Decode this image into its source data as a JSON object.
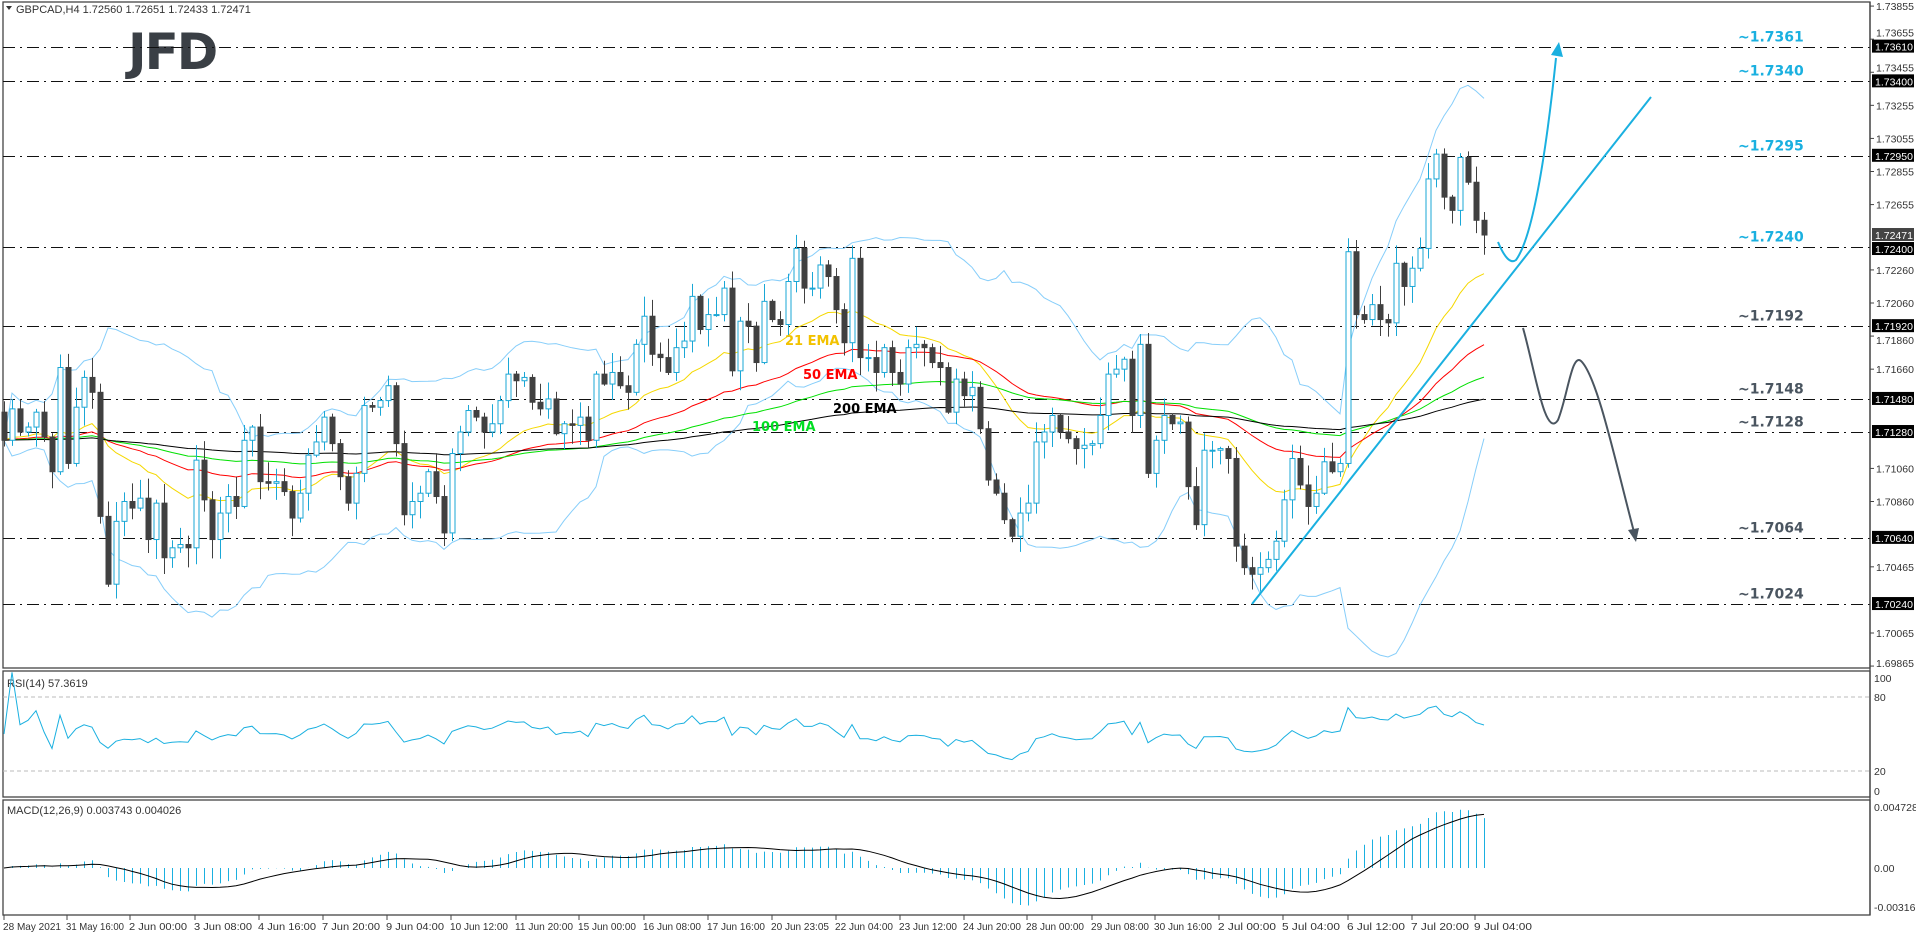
{
  "header": {
    "symbol_line": "GBPCAD,H4  1.72560 1.72651 1.72433 1.72471",
    "rsi_label": "RSI(14) 57.3619",
    "macd_label": "MACD(12,26,9) 0.003743 0.004026"
  },
  "logo": "JFD",
  "chart_data": {
    "type": "candlestick",
    "symbol": "GBPCAD",
    "timeframe": "H4",
    "ohlc_last": {
      "open": 1.7256,
      "high": 1.72651,
      "low": 1.72433,
      "close": 1.72471
    },
    "ylim": [
      1.69865,
      1.73855
    ],
    "closes": [
      1.7123,
      1.7142,
      1.7128,
      1.7131,
      1.714,
      1.7125,
      1.7104,
      1.7167,
      1.7109,
      1.7143,
      1.7161,
      1.7152,
      1.7077,
      1.7036,
      1.7074,
      1.7086,
      1.7082,
      1.7088,
      1.7063,
      1.7085,
      1.7052,
      1.7058,
      1.706,
      1.7058,
      1.7111,
      1.7087,
      1.7063,
      1.7079,
      1.7089,
      1.7083,
      1.7123,
      1.7131,
      1.7098,
      1.7097,
      1.7098,
      1.7092,
      1.7076,
      1.7091,
      1.7114,
      1.7122,
      1.7137,
      1.7121,
      1.7101,
      1.7085,
      1.7103,
      1.7144,
      1.7143,
      1.7147,
      1.7156,
      1.7121,
      1.7078,
      1.7086,
      1.7091,
      1.7104,
      1.7089,
      1.7067,
      1.7115,
      1.7128,
      1.7141,
      1.7137,
      1.7128,
      1.7133,
      1.7147,
      1.7163,
      1.7159,
      1.7161,
      1.7146,
      1.7142,
      1.7148,
      1.7127,
      1.7133,
      1.7132,
      1.7137,
      1.7123,
      1.7163,
      1.7157,
      1.7164,
      1.7156,
      1.7152,
      1.7181,
      1.7198,
      1.7175,
      1.7173,
      1.7164,
      1.7179,
      1.7183,
      1.721,
      1.719,
      1.7199,
      1.7199,
      1.7215,
      1.7165,
      1.7195,
      1.7192,
      1.717,
      1.7207,
      1.7196,
      1.7193,
      1.7219,
      1.7239,
      1.7215,
      1.7215,
      1.7229,
      1.7222,
      1.7202,
      1.7182,
      1.7233,
      1.7173,
      1.7173,
      1.7164,
      1.7179,
      1.7164,
      1.7157,
      1.7179,
      1.7181,
      1.7179,
      1.717,
      1.7167,
      1.714,
      1.716,
      1.715,
      1.7155,
      1.713,
      1.7099,
      1.7091,
      1.7075,
      1.7065,
      1.7079,
      1.7085,
      1.7122,
      1.7128,
      1.7138,
      1.7128,
      1.7124,
      1.7118,
      1.712,
      1.7121,
      1.7138,
      1.7163,
      1.7166,
      1.7172,
      1.7138,
      1.7181,
      1.7103,
      1.7123,
      1.7138,
      1.7133,
      1.7134,
      1.7095,
      1.7072,
      1.7117,
      1.7117,
      1.7118,
      1.7112,
      1.7059,
      1.7046,
      1.7042,
      1.7046,
      1.7051,
      1.7062,
      1.7087,
      1.7112,
      1.7096,
      1.7083,
      1.7091,
      1.711,
      1.7104,
      1.7109,
      1.7237,
      1.7199,
      1.7196,
      1.7205,
      1.7196,
      1.7194,
      1.723,
      1.7216,
      1.7227,
      1.7239,
      1.7281,
      1.7296,
      1.727,
      1.7262,
      1.7294,
      1.7279,
      1.7256,
      1.72471
    ],
    "indicators": {
      "ema": [
        {
          "period": 21,
          "label": "21 EMA",
          "color": "#f5d800",
          "label_color": "#f2c200"
        },
        {
          "period": 50,
          "label": "50 EMA",
          "color": "#ff0000",
          "label_color": "#ff0000"
        },
        {
          "period": 100,
          "label": "100 EMA",
          "color": "#00e000",
          "label_color": "#00dd22"
        },
        {
          "period": 200,
          "label": "200 EMA",
          "color": "#000000",
          "label_color": "#000000"
        }
      ],
      "bollinger": {
        "period": 20,
        "deviation": 2,
        "color": "#87cefa"
      },
      "rsi": {
        "period": 14,
        "levels": [
          80,
          20
        ],
        "color": "#1ab0e0",
        "ylim": [
          0,
          100
        ]
      },
      "macd": {
        "fast": 12,
        "slow": 26,
        "signal": 9,
        "hist_color": "#1ab0e0",
        "signal_color": "#000000",
        "ylim": [
          -0.003169,
          0.004728
        ]
      }
    },
    "levels": [
      {
        "price": 1.7361,
        "label": "~1.7361",
        "box": "1.73610",
        "color": "#1ab0e0"
      },
      {
        "price": 1.734,
        "label": "~1.7340",
        "box": "1.73400",
        "color": "#1ab0e0"
      },
      {
        "price": 1.7295,
        "label": "~1.7295",
        "box": "1.72950",
        "color": "#1ab0e0"
      },
      {
        "price": 1.724,
        "label": "~1.7240",
        "box": "1.72400",
        "color": "#1ab0e0"
      },
      {
        "price": 1.7192,
        "label": "~1.7192",
        "box": "1.71920",
        "color": "#4a5560"
      },
      {
        "price": 1.7148,
        "label": "~1.7148",
        "box": "1.71480",
        "color": "#4a5560"
      },
      {
        "price": 1.7128,
        "label": "~1.7128",
        "box": "1.71280",
        "color": "#4a5560"
      },
      {
        "price": 1.7064,
        "label": "~1.7064",
        "box": "1.70640",
        "color": "#4a5560"
      },
      {
        "price": 1.7024,
        "label": "~1.7024",
        "box": "1.70240",
        "color": "#4a5560"
      }
    ],
    "current_price_box": "1.72471",
    "y_ticks": [
      "1.73855",
      "1.73655",
      "1.73455",
      "1.73255",
      "1.73055",
      "1.72855",
      "1.72655",
      "1.72260",
      "1.72060",
      "1.71860",
      "1.71660",
      "1.71060",
      "1.70860",
      "1.70465",
      "1.70065",
      "1.69865"
    ],
    "rsi_ticks": [
      "100",
      "80",
      "20",
      "0"
    ],
    "macd_ticks": [
      "0.004728",
      "0.00",
      "-0.003169"
    ],
    "x_ticks": [
      "28 May 2021",
      "31 May 16:00",
      "2 Jun 00:00",
      "3 Jun 08:00",
      "4 Jun 16:00",
      "7 Jun 20:00",
      "9 Jun 04:00",
      "10 Jun 12:00",
      "11 Jun 20:00",
      "15 Jun 00:00",
      "16 Jun 08:00",
      "17 Jun 16:00",
      "20 Jun 23:05",
      "22 Jun 04:00",
      "23 Jun 12:00",
      "24 Jun 20:00",
      "28 Jun 00:00",
      "29 Jun 08:00",
      "30 Jun 16:00",
      "2 Jul 00:00",
      "5 Jul 04:00",
      "6 Jul 12:00",
      "7 Jul 20:00",
      "9 Jul 04:00"
    ],
    "colors": {
      "bull": "#1aa7d6",
      "bear": "#404040",
      "bull_projection": "#1ab0e0",
      "bear_projection": "#4a5560",
      "trendline": "#1ab0e0"
    }
  }
}
